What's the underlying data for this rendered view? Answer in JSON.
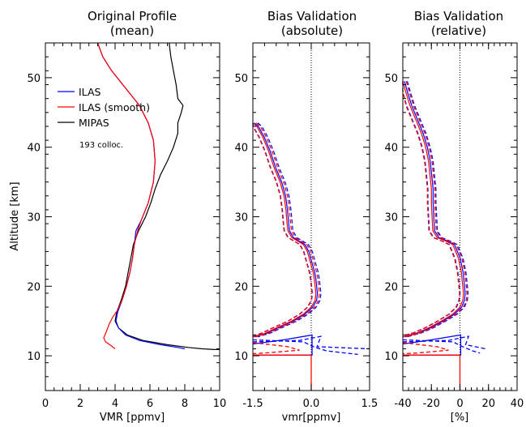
{
  "colors": {
    "ilas": "#0000ff",
    "ilas_smooth": "#ff0000",
    "mipas": "#000000"
  },
  "chart_data": [
    {
      "type": "line",
      "title": "Original Profile",
      "subtitle": "(mean)",
      "xlabel": "VMR [ppmv]",
      "ylabel": "Altitude [km]",
      "xlim": [
        0,
        10
      ],
      "ylim": [
        5,
        55
      ],
      "xticks": [
        "0",
        "2",
        "4",
        "6",
        "8",
        "10"
      ],
      "yticks": [
        "10",
        "20",
        "30",
        "40",
        "50"
      ],
      "legend": [
        "ILAS",
        "ILAS (smooth)",
        "MIPAS"
      ],
      "annotation": "193 colloc.",
      "series": [
        {
          "name": "ILAS",
          "color": "#0000ff",
          "points": [
            [
              3,
              55
            ],
            [
              3.3,
              53
            ],
            [
              3.8,
              51
            ],
            [
              4.6,
              48.5
            ],
            [
              5.4,
              46
            ],
            [
              5.9,
              43.5
            ],
            [
              6.2,
              41
            ],
            [
              6.3,
              38
            ],
            [
              6.2,
              35
            ],
            [
              5.9,
              32
            ],
            [
              5.5,
              29.5
            ],
            [
              5.2,
              28
            ],
            [
              5.1,
              26
            ],
            [
              5.0,
              24
            ],
            [
              4.85,
              22
            ],
            [
              4.65,
              20
            ],
            [
              4.4,
              18
            ],
            [
              4.15,
              16.3
            ],
            [
              4.05,
              15
            ],
            [
              4.2,
              14
            ],
            [
              4.6,
              13
            ],
            [
              5.4,
              12.2
            ],
            [
              6.6,
              11.6
            ],
            [
              7.6,
              11.2
            ],
            [
              8.0,
              11.0
            ]
          ]
        },
        {
          "name": "ILAS (smooth)",
          "color": "#ff0000",
          "points": [
            [
              3,
              55
            ],
            [
              3.3,
              53
            ],
            [
              3.8,
              51
            ],
            [
              4.6,
              48.5
            ],
            [
              5.4,
              46
            ],
            [
              5.9,
              43.5
            ],
            [
              6.2,
              41
            ],
            [
              6.3,
              38
            ],
            [
              6.2,
              35
            ],
            [
              5.9,
              32
            ],
            [
              5.5,
              29.5
            ],
            [
              5.3,
              28
            ],
            [
              5.1,
              26
            ],
            [
              5.0,
              24
            ],
            [
              4.85,
              22
            ],
            [
              4.65,
              20
            ],
            [
              4.4,
              18
            ],
            [
              4.1,
              16.4
            ],
            [
              3.85,
              15.5
            ],
            [
              3.65,
              14.5
            ],
            [
              3.5,
              13.5
            ],
            [
              3.35,
              12.6
            ],
            [
              3.45,
              12.0
            ],
            [
              3.75,
              11.5
            ],
            [
              4.0,
              11.0
            ]
          ]
        },
        {
          "name": "MIPAS",
          "color": "#000000",
          "points": [
            [
              7.1,
              55
            ],
            [
              7.2,
              53
            ],
            [
              7.35,
              51
            ],
            [
              7.5,
              49
            ],
            [
              7.6,
              47
            ],
            [
              7.9,
              46
            ],
            [
              7.8,
              45
            ],
            [
              7.6,
              43.5
            ],
            [
              7.6,
              42
            ],
            [
              7.35,
              40
            ],
            [
              7.0,
              38
            ],
            [
              6.6,
              36
            ],
            [
              6.3,
              34
            ],
            [
              6.05,
              32
            ],
            [
              5.75,
              30
            ],
            [
              5.35,
              28
            ],
            [
              5.05,
              26
            ],
            [
              4.9,
              24
            ],
            [
              4.75,
              22
            ],
            [
              4.6,
              20
            ],
            [
              4.35,
              18
            ],
            [
              4.1,
              16.3
            ],
            [
              4.0,
              15
            ],
            [
              4.2,
              14
            ],
            [
              4.7,
              13
            ],
            [
              5.6,
              12.2
            ],
            [
              7.0,
              11.6
            ],
            [
              8.2,
              11.2
            ],
            [
              9.0,
              11.0
            ],
            [
              9.7,
              10.9
            ],
            [
              10,
              10.9
            ]
          ]
        }
      ]
    },
    {
      "type": "line",
      "title": "Bias Validation",
      "subtitle": "(absolute)",
      "xlabel": "vmr[ppmv]",
      "xlim": [
        -1.5,
        1.5
      ],
      "ylim": [
        5,
        55
      ],
      "xticks": [
        "-1.5",
        "0.0",
        "1.5"
      ],
      "yticks": [
        "10",
        "20",
        "30",
        "40",
        "50"
      ],
      "reference_line": 0,
      "profile": [
        [
          -1.5,
          43.5
        ],
        [
          -1.4,
          43
        ],
        [
          -1.25,
          41.5
        ],
        [
          -1.1,
          39.5
        ],
        [
          -0.95,
          37
        ],
        [
          -0.8,
          35
        ],
        [
          -0.7,
          33
        ],
        [
          -0.65,
          31
        ],
        [
          -0.62,
          29
        ],
        [
          -0.6,
          28
        ],
        [
          -0.5,
          27
        ],
        [
          -0.35,
          26.5
        ],
        [
          -0.2,
          26
        ],
        [
          -0.1,
          25
        ],
        [
          -0.05,
          24
        ],
        [
          0,
          23
        ],
        [
          0.05,
          22
        ],
        [
          0.08,
          21
        ],
        [
          0.1,
          20
        ],
        [
          0.12,
          19
        ],
        [
          0.1,
          18
        ],
        [
          0.0,
          17
        ],
        [
          -0.2,
          16
        ],
        [
          -0.5,
          15
        ],
        [
          -0.9,
          14
        ],
        [
          -1.2,
          13.2
        ],
        [
          -1.4,
          12.9
        ],
        [
          -1.5,
          12.7
        ]
      ],
      "series": [
        {
          "name": "ILAS",
          "color": "#0000ff",
          "style": "solid",
          "shift": 0.04
        },
        {
          "name": "ILAS (smooth)",
          "color": "#ff0000",
          "style": "solid",
          "shift": 0
        },
        {
          "name": "ILAS",
          "color": "#0000ff",
          "style": "dashed",
          "shift": 0.13
        },
        {
          "name": "ILAS",
          "color": "#0000ff",
          "style": "dashed",
          "shift": -0.09
        },
        {
          "name": "ILAS (smooth)",
          "color": "#ff0000",
          "style": "dashed",
          "shift": 0.09
        },
        {
          "name": "ILAS (smooth)",
          "color": "#ff0000",
          "style": "dashed",
          "shift": -0.1
        }
      ],
      "low_segments": [
        {
          "color": "#0000ff",
          "style": "solid",
          "points": [
            [
              -1.5,
              11.7
            ],
            [
              -0.7,
              12.3
            ],
            [
              0.02,
              13
            ],
            [
              0.02,
              10.1
            ],
            [
              -1.5,
              10.1
            ]
          ]
        },
        {
          "color": "#0000ff",
          "style": "dashed",
          "points": [
            [
              -1.5,
              12.0
            ],
            [
              -0.3,
              12.2
            ],
            [
              0.25,
              12.8
            ],
            [
              0.15,
              11.3
            ],
            [
              1.5,
              11.0
            ]
          ]
        },
        {
          "color": "#0000ff",
          "style": "dashed",
          "points": [
            [
              -1.5,
              12.3
            ],
            [
              -0.2,
              12.0
            ],
            [
              0.1,
              11.2
            ],
            [
              0.4,
              10.7
            ],
            [
              1.2,
              10.2
            ]
          ]
        },
        {
          "color": "#ff0000",
          "style": "dashed",
          "points": [
            [
              -1.5,
              11.9
            ],
            [
              -0.6,
              11.3
            ],
            [
              -0.3,
              10.8
            ],
            [
              -1.2,
              10.4
            ],
            [
              -1.5,
              10.3
            ]
          ]
        },
        {
          "color": "#ff0000",
          "style": "solid",
          "points": [
            [
              -1.5,
              10.1
            ],
            [
              0,
              10.1
            ],
            [
              0,
              5
            ]
          ]
        }
      ]
    },
    {
      "type": "line",
      "title": "Bias Validation",
      "subtitle": "(relative)",
      "xlabel": "[%]",
      "xlim": [
        -40,
        40
      ],
      "ylim": [
        5,
        55
      ],
      "xticks": [
        "-40",
        "-20",
        "0",
        "20",
        "40"
      ],
      "yticks": [
        "10",
        "20",
        "30",
        "40",
        "50"
      ],
      "reference_line": 0,
      "profile": [
        [
          -40,
          49.5
        ],
        [
          -38,
          48
        ],
        [
          -35,
          46
        ],
        [
          -31,
          44
        ],
        [
          -27,
          42
        ],
        [
          -24,
          40
        ],
        [
          -22,
          38
        ],
        [
          -21,
          36
        ],
        [
          -20,
          34
        ],
        [
          -20,
          32
        ],
        [
          -19.5,
          30
        ],
        [
          -19,
          28
        ],
        [
          -16,
          27
        ],
        [
          -10,
          26.5
        ],
        [
          -5,
          26
        ],
        [
          -3,
          25
        ],
        [
          -1,
          24
        ],
        [
          0,
          23
        ],
        [
          1,
          22
        ],
        [
          1.5,
          21
        ],
        [
          2,
          20
        ],
        [
          2.5,
          19
        ],
        [
          2,
          18
        ],
        [
          0,
          17
        ],
        [
          -5,
          16
        ],
        [
          -13,
          15
        ],
        [
          -22,
          14
        ],
        [
          -30,
          13.3
        ],
        [
          -37,
          12.9
        ],
        [
          -40,
          12.7
        ]
      ],
      "series": [
        {
          "name": "ILAS",
          "color": "#0000ff",
          "style": "solid",
          "shift": 1.2
        },
        {
          "name": "ILAS (smooth)",
          "color": "#ff0000",
          "style": "solid",
          "shift": 0
        },
        {
          "name": "ILAS",
          "color": "#0000ff",
          "style": "dashed",
          "shift": 3.2
        },
        {
          "name": "ILAS",
          "color": "#0000ff",
          "style": "dashed",
          "shift": -2.4
        },
        {
          "name": "ILAS (smooth)",
          "color": "#ff0000",
          "style": "dashed",
          "shift": 2.4
        },
        {
          "name": "ILAS (smooth)",
          "color": "#ff0000",
          "style": "dashed",
          "shift": -2.8
        }
      ],
      "low_segments": [
        {
          "color": "#0000ff",
          "style": "solid",
          "points": [
            [
              -40,
              11.7
            ],
            [
              -20,
              12.3
            ],
            [
              0.5,
              13
            ],
            [
              0.5,
              10.1
            ],
            [
              -40,
              10.1
            ]
          ]
        },
        {
          "color": "#0000ff",
          "style": "dashed",
          "points": [
            [
              -40,
              12.0
            ],
            [
              -8,
              12.2
            ],
            [
              6,
              12.8
            ],
            [
              4,
              11.6
            ],
            [
              18,
              11.0
            ]
          ]
        },
        {
          "color": "#0000ff",
          "style": "dashed",
          "points": [
            [
              -40,
              12.3
            ],
            [
              -5,
              12.0
            ],
            [
              3,
              11.2
            ],
            [
              9,
              10.7
            ],
            [
              14,
              10.4
            ]
          ]
        },
        {
          "color": "#ff0000",
          "style": "dashed",
          "points": [
            [
              -40,
              11.9
            ],
            [
              -16,
              11.3
            ],
            [
              -8,
              10.8
            ],
            [
              -30,
              10.4
            ],
            [
              -40,
              10.3
            ]
          ]
        },
        {
          "color": "#ff0000",
          "style": "solid",
          "points": [
            [
              -40,
              10.1
            ],
            [
              0,
              10.1
            ],
            [
              0,
              5
            ]
          ]
        }
      ]
    }
  ]
}
